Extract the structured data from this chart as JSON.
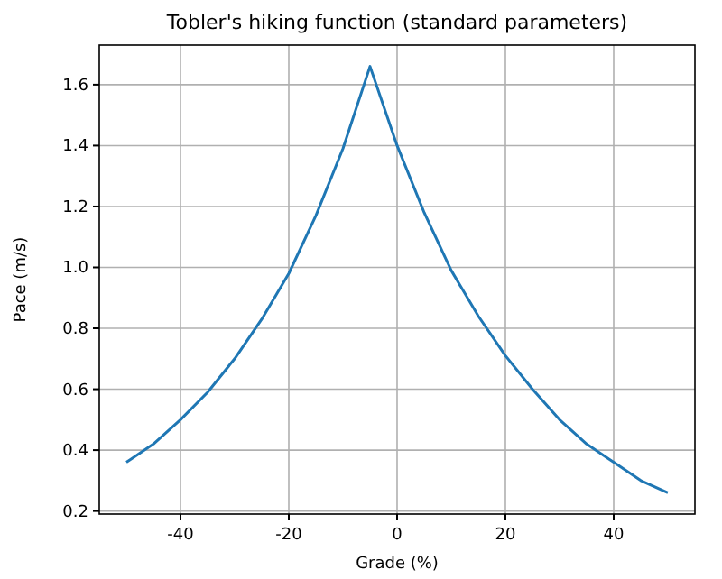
{
  "chart_data": {
    "type": "line",
    "title": "Tobler's hiking function (standard parameters)",
    "xlabel": "Grade (%)",
    "ylabel": "Pace (m/s)",
    "x": [
      -50,
      -45,
      -40,
      -35,
      -30,
      -25,
      -20,
      -15,
      -10,
      -5,
      0,
      5,
      10,
      15,
      20,
      25,
      30,
      35,
      40,
      45,
      50
    ],
    "series": [
      {
        "color": "#1f77b4",
        "values": [
          0.36,
          0.42,
          0.5,
          0.59,
          0.7,
          0.83,
          0.98,
          1.17,
          1.39,
          1.66,
          1.4,
          1.18,
          0.99,
          0.84,
          0.71,
          0.6,
          0.5,
          0.42,
          0.36,
          0.3,
          0.26
        ]
      }
    ],
    "xlim": [
      -55,
      55
    ],
    "xticks": [
      -40,
      -20,
      0,
      20,
      40
    ],
    "ylim": [
      0.19,
      1.73
    ],
    "yticks": [
      0.2,
      0.4,
      0.6,
      0.8,
      {
        "value": 1,
        "label": "1.0"
      },
      1.2,
      1.4,
      1.6
    ],
    "grid": true,
    "marker": "none",
    "line_style": "solid"
  }
}
